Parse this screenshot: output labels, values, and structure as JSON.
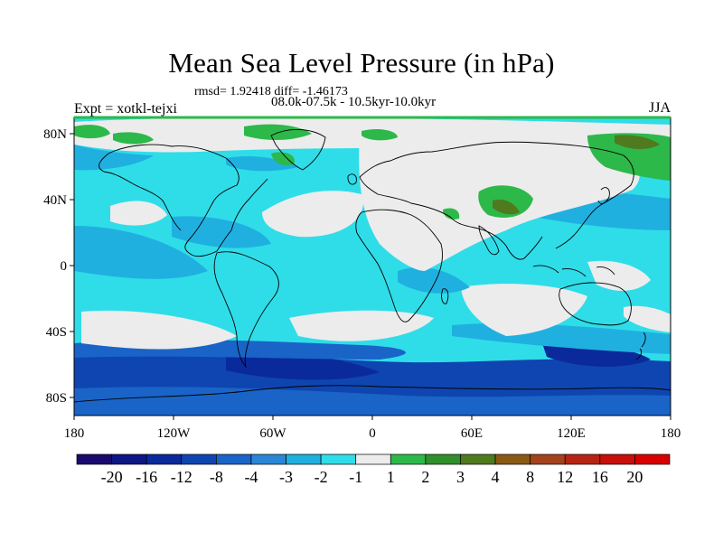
{
  "title": "Mean Sea Level Pressure (in hPa)",
  "stats": "rmsd= 1.92418 diff= -1.46173",
  "period": "08.0k-07.5k - 10.5kyr-10.0kyr",
  "experiment": "Expt = xotkl-tejxi",
  "season": "JJA",
  "axes": {
    "x_ticks": [
      "180",
      "120W",
      "60W",
      "0",
      "60E",
      "120E",
      "180"
    ],
    "y_ticks": [
      "80N",
      "40N",
      "0",
      "40S",
      "80S"
    ]
  },
  "colorbar": {
    "labels": [
      "-20",
      "-16",
      "-12",
      "-8",
      "-4",
      "-3",
      "-2",
      "-1",
      "1",
      "2",
      "3",
      "4",
      "8",
      "12",
      "16",
      "20"
    ],
    "colors": [
      "#1a0a6e",
      "#0e1785",
      "#0a2a9c",
      "#0f45b0",
      "#1a64c8",
      "#2a86d6",
      "#20b0e0",
      "#2fdde8",
      "#ececec",
      "#2db84a",
      "#2f8f2a",
      "#4f7a1e",
      "#8a5a14",
      "#a3421c",
      "#b62414",
      "#c80f0a",
      "#d80000"
    ]
  },
  "chart_data": {
    "type": "heatmap",
    "title": "Mean Sea Level Pressure (in hPa)",
    "levels": [
      -20,
      -16,
      -12,
      -8,
      -4,
      -3,
      -2,
      -1,
      1,
      2,
      3,
      4,
      8,
      12,
      16,
      20
    ],
    "xlim": [
      -180,
      180
    ],
    "ylim": [
      -90,
      90
    ],
    "grid": false
  }
}
